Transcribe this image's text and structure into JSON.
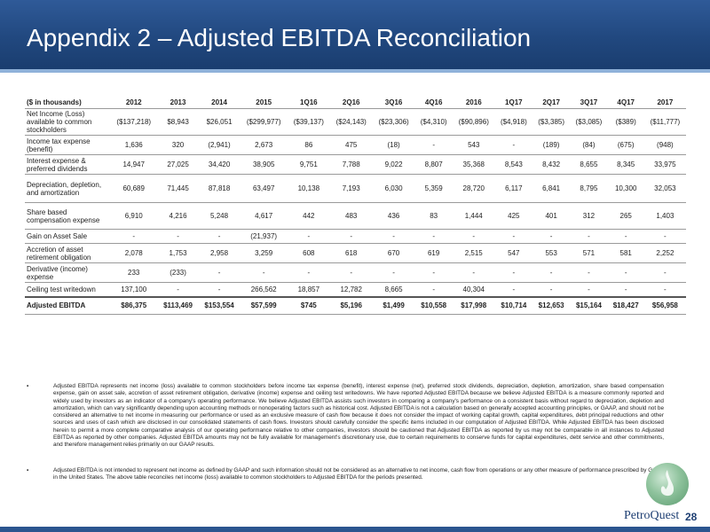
{
  "slide": {
    "title": "Appendix 2 – Adjusted EBITDA Reconciliation",
    "page_number": "28",
    "logo_text": "PetroQuest"
  },
  "table": {
    "headers": [
      "($ in thousands)",
      "2012",
      "2013",
      "2014",
      "2015",
      "1Q16",
      "2Q16",
      "3Q16",
      "4Q16",
      "2016",
      "1Q17",
      "2Q17",
      "3Q17",
      "4Q17",
      "2017"
    ],
    "rows": [
      {
        "label": "Net Income (Loss) available to common stockholders",
        "values": [
          "($137,218)",
          "$8,943",
          "$26,051",
          "($299,977)",
          "($39,137)",
          "($24,143)",
          "($23,306)",
          "($4,310)",
          "($90,896)",
          "($4,918)",
          "($3,385)",
          "($3,085)",
          "($389)",
          "($11,777)"
        ]
      },
      {
        "label": "Income tax expense (benefit)",
        "values": [
          "1,636",
          "320",
          "(2,941)",
          "2,673",
          "86",
          "475",
          "(18)",
          "-",
          "543",
          "-",
          "(189)",
          "(84)",
          "(675)",
          "(948)"
        ]
      },
      {
        "label": "Interest expense & preferred dividends",
        "values": [
          "14,947",
          "27,025",
          "34,420",
          "38,905",
          "9,751",
          "7,788",
          "9,022",
          "8,807",
          "35,368",
          "8,543",
          "8,432",
          "8,655",
          "8,345",
          "33,975"
        ]
      },
      {
        "label": "Depreciation, depletion, and amortization",
        "values": [
          "60,689",
          "71,445",
          "87,818",
          "63,497",
          "10,138",
          "7,193",
          "6,030",
          "5,359",
          "28,720",
          "6,117",
          "6,841",
          "8,795",
          "10,300",
          "32,053"
        ]
      },
      {
        "label": "Share based compensation expense",
        "values": [
          "6,910",
          "4,216",
          "5,248",
          "4,617",
          "442",
          "483",
          "436",
          "83",
          "1,444",
          "425",
          "401",
          "312",
          "265",
          "1,403"
        ]
      },
      {
        "label": "Gain on Asset Sale",
        "values": [
          "-",
          "-",
          "-",
          "(21,937)",
          "-",
          "-",
          "-",
          "-",
          "-",
          "-",
          "-",
          "-",
          "-",
          "-"
        ]
      },
      {
        "label": "Accretion of asset retirement obligation",
        "values": [
          "2,078",
          "1,753",
          "2,958",
          "3,259",
          "608",
          "618",
          "670",
          "619",
          "2,515",
          "547",
          "553",
          "571",
          "581",
          "2,252"
        ]
      },
      {
        "label": "Derivative (income) expense",
        "values": [
          "233",
          "(233)",
          "-",
          "-",
          "-",
          "-",
          "-",
          "-",
          "-",
          "-",
          "-",
          "-",
          "-",
          "-"
        ]
      },
      {
        "label": "Ceiling test writedown",
        "values": [
          "137,100",
          "-",
          "-",
          "266,562",
          "18,857",
          "12,782",
          "8,665",
          "-",
          "40,304",
          "-",
          "-",
          "-",
          "-",
          "-"
        ]
      }
    ],
    "total": {
      "label": "Adjusted EBITDA",
      "values": [
        "$86,375",
        "$113,469",
        "$153,554",
        "$57,599",
        "$745",
        "$5,196",
        "$1,499",
        "$10,558",
        "$17,998",
        "$10,714",
        "$12,653",
        "$15,164",
        "$18,427",
        "$56,958"
      ]
    }
  },
  "notes": {
    "bullet": "▪",
    "note1": "Adjusted EBITDA represents net income (loss) available to common stockholders before income tax expense (benefit), interest expense (net), preferred stock dividends, depreciation, depletion, amortization, share based compensation expense, gain on asset sale, accretion of asset retirement obligation, derivative (income) expense and ceiling test writedowns. We have reported Adjusted EBITDA because we believe Adjusted EBITDA is a measure commonly reported and widely used by investors as an indicator of a company's operating performance. We believe Adjusted EBITDA assists such investors in comparing a company's performance on a consistent basis without regard to depreciation, depletion and amortization, which can vary significantly depending upon accounting methods or nonoperating factors such as historical cost. Adjusted EBITDA is not a calculation based on generally accepted accounting principles, or GAAP, and should not be considered an alternative to net income in measuring our performance or used as an exclusive measure of cash flow because it does not consider the impact of working capital growth, capital expenditures, debt principal reductions and other sources and uses of cash which are disclosed in our consolidated statements of cash flows. Investors should carefully consider the specific items included in our computation of Adjusted EBITDA. While Adjusted EBITDA has been disclosed herein to permit a more complete comparative analysis of our operating performance relative to other companies, investors should be cautioned that Adjusted EBITDA as reported by us may not be comparable in all instances to Adjusted EBITDA as reported by other companies. Adjusted EBITDA amounts may not be fully available for management's discretionary use, due to certain requirements to conserve funds for capital expenditures, debt service and other commitments, and therefore management relies primarily on our GAAP results.",
    "note2": "Adjusted EBITDA is not intended to represent net income as defined by GAAP and such information should not be considered as an alternative to net income, cash flow from operations or any other measure of performance prescribed by GAAP in the United States. The above table reconciles net income (loss) available to common stockholders to Adjusted EBITDA for the periods presented."
  }
}
